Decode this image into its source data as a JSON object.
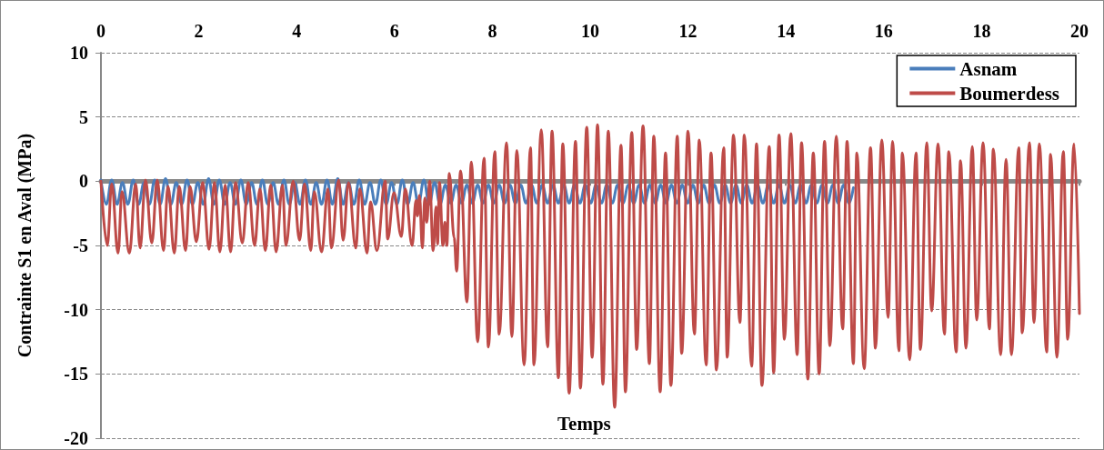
{
  "chart_data": {
    "type": "line",
    "xlabel": "Temps",
    "ylabel": "Contrainte S1 en Aval (MPa)",
    "xlim": [
      0,
      20
    ],
    "xticks": [
      0,
      2,
      4,
      6,
      8,
      10,
      12,
      14,
      16,
      18,
      20
    ],
    "ylim": [
      -20,
      10
    ],
    "yticks": [
      -20,
      -15,
      -10,
      -5,
      0,
      5,
      10
    ],
    "grid": "y",
    "legend": "top right",
    "marker": "none",
    "line_style": "solid",
    "series": [
      {
        "name": "Asnam",
        "color": "#4a7ebb",
        "x": [
          0,
          0.11,
          0.22,
          0.33,
          0.44,
          0.55,
          0.66,
          0.77,
          0.88,
          0.99,
          1.1,
          1.21,
          1.32,
          1.43,
          1.54,
          1.65,
          1.76,
          1.87,
          1.98,
          2.09,
          2.2,
          2.31,
          2.42,
          2.53,
          2.64,
          2.75,
          2.86,
          2.97,
          3.08,
          3.19,
          3.3,
          3.41,
          3.52,
          3.63,
          3.74,
          3.85,
          3.96,
          4.07,
          4.18,
          4.29,
          4.4,
          4.51,
          4.62,
          4.73,
          4.84,
          4.95,
          5.06,
          5.17,
          5.28,
          5.39,
          5.5,
          5.61,
          5.72,
          5.83,
          5.94,
          6.05,
          6.16,
          6.27,
          6.38,
          6.49,
          6.6,
          6.71,
          6.82,
          6.93,
          7.04,
          7.15,
          7.26,
          7.37,
          7.48,
          7.59,
          7.7,
          7.81,
          7.92,
          8.03,
          8.14,
          8.25,
          8.36,
          8.47,
          8.58,
          8.69,
          8.8,
          8.91,
          9.02,
          9.13,
          9.24,
          9.35,
          9.46,
          9.57,
          9.68,
          9.79,
          9.9,
          10.01,
          10.12,
          10.23,
          10.34,
          10.45,
          10.56,
          10.67,
          10.78,
          10.89,
          11,
          11.11,
          11.22,
          11.33,
          11.44,
          11.55,
          11.66,
          11.77,
          11.88,
          11.99,
          12.1,
          12.21,
          12.32,
          12.43,
          12.54,
          12.65,
          12.76,
          12.87,
          12.98,
          13.09,
          13.2,
          13.31,
          13.42,
          13.53,
          13.64,
          13.75,
          13.86,
          13.97,
          14.08,
          14.19,
          14.3,
          14.41,
          14.52,
          14.63,
          14.74,
          14.85,
          14.96,
          15.07,
          15.18,
          15.29,
          15.38
        ],
        "values": [
          0.1,
          -1.8,
          0.1,
          -1.8,
          -0.1,
          -1.8,
          0.1,
          -1.8,
          -0.1,
          -1.8,
          0.1,
          -1.8,
          0.2,
          -1.8,
          -0.1,
          -1.8,
          0.1,
          -1.8,
          -0.1,
          -1.8,
          0.2,
          -1.8,
          0.1,
          -1.8,
          -0.1,
          -1.8,
          0.1,
          -1.8,
          -0.1,
          -1.8,
          0.1,
          -1.8,
          -0.1,
          -1.8,
          0.1,
          -1.8,
          -0.1,
          -1.8,
          0.1,
          -1.8,
          -0.1,
          -1.8,
          0.1,
          -1.8,
          0.2,
          -1.8,
          -0.1,
          -1.8,
          0.1,
          -1.8,
          -0.1,
          -1.8,
          0.1,
          -1.8,
          -0.1,
          -1.8,
          0.1,
          -1.8,
          -0.1,
          -1.8,
          0.1,
          -1.8,
          -0.1,
          -1.8,
          -0.3,
          -1.7,
          -0.3,
          -1.7,
          -0.3,
          -1.7,
          -0.3,
          -1.7,
          -0.3,
          -1.7,
          -0.3,
          -1.7,
          -0.3,
          -1.7,
          -0.3,
          -1.7,
          -0.3,
          -1.7,
          -0.3,
          -1.7,
          -0.3,
          -1.7,
          -0.3,
          -1.7,
          -0.3,
          -1.7,
          -0.3,
          -1.7,
          -0.3,
          -1.7,
          -0.3,
          -1.7,
          -0.3,
          -1.7,
          -0.3,
          -1.7,
          -0.3,
          -1.7,
          -0.3,
          -1.7,
          -0.3,
          -1.7,
          -0.3,
          -1.7,
          -0.3,
          -1.7,
          -0.3,
          -1.7,
          -0.3,
          -1.7,
          -0.3,
          -1.7,
          -0.3,
          -1.7,
          -0.3,
          -1.7,
          -0.3,
          -1.7,
          -0.3,
          -1.7,
          -0.3,
          -1.7,
          -0.3,
          -1.7,
          -0.3,
          -1.7,
          -0.3,
          -1.7,
          -0.3,
          -1.7,
          -0.3,
          -1.7,
          -0.3,
          -1.7,
          -0.3,
          -1.7,
          -0.5
        ]
      },
      {
        "name": "Boumerdess",
        "color": "#be4b48",
        "x": [
          0,
          0.13,
          0.22,
          0.35,
          0.43,
          0.58,
          0.71,
          0.8,
          0.91,
          1.04,
          1.15,
          1.28,
          1.37,
          1.5,
          1.6,
          1.73,
          1.82,
          1.95,
          2.08,
          2.21,
          2.32,
          2.43,
          2.54,
          2.65,
          2.75,
          2.89,
          3.01,
          3.14,
          3.25,
          3.36,
          3.47,
          3.58,
          3.71,
          3.78,
          3.93,
          4.06,
          4.16,
          4.29,
          4.36,
          4.51,
          4.64,
          4.71,
          4.86,
          4.95,
          5.06,
          5.21,
          5.29,
          5.44,
          5.51,
          5.64,
          5.81,
          5.86,
          5.99,
          6.14,
          6.22,
          6.36,
          6.44,
          6.47,
          6.51,
          6.57,
          6.62,
          6.66,
          6.72,
          6.79,
          6.85,
          6.88,
          6.92,
          6.99,
          7.03,
          7.07,
          7.12,
          7.22,
          7.27,
          7.35,
          7.48,
          7.57,
          7.7,
          7.83,
          7.92,
          8.05,
          8.14,
          8.29,
          8.4,
          8.5,
          8.65,
          8.78,
          8.85,
          9.0,
          9.13,
          9.22,
          9.35,
          9.44,
          9.57,
          9.7,
          9.8,
          9.93,
          10.04,
          10.15,
          10.26,
          10.37,
          10.5,
          10.63,
          10.72,
          10.85,
          10.95,
          11.08,
          11.21,
          11.3,
          11.43,
          11.54,
          11.65,
          11.78,
          11.87,
          12.0,
          12.13,
          12.23,
          12.37,
          12.47,
          12.58,
          12.73,
          12.8,
          12.93,
          13.06,
          13.15,
          13.3,
          13.4,
          13.51,
          13.66,
          13.75,
          13.86,
          13.97,
          14.1,
          14.23,
          14.32,
          14.45,
          14.56,
          14.68,
          14.79,
          14.9,
          15.03,
          15.16,
          15.25,
          15.38,
          15.45,
          15.6,
          15.73,
          15.83,
          15.96,
          16.09,
          16.18,
          16.31,
          16.38,
          16.53,
          16.66,
          16.75,
          16.88,
          16.98,
          17.11,
          17.24,
          17.33,
          17.48,
          17.57,
          17.68,
          17.81,
          17.9,
          18.03,
          18.16,
          18.24,
          18.39,
          18.5,
          18.61,
          18.76,
          18.83,
          18.98,
          19.07,
          19.18,
          19.33,
          19.41,
          19.54,
          19.67,
          19.76,
          19.89,
          20.0
        ],
        "values": [
          0,
          -5.0,
          -0.2,
          -5.6,
          -0.8,
          -5.6,
          -0.2,
          -5.2,
          0.1,
          -4.8,
          0.1,
          -5.4,
          -0.4,
          -5.6,
          -0.4,
          -5.4,
          -0.4,
          -4.7,
          -0.1,
          -5.3,
          -0.1,
          -5.5,
          -0.3,
          -5.5,
          -0.1,
          -4.8,
          -0.1,
          -5.0,
          -0.6,
          -5.4,
          -0.3,
          -5.5,
          -0.3,
          -5.0,
          0,
          -4.6,
          -0.2,
          -5.4,
          -0.8,
          -5.5,
          -0.6,
          -5.2,
          0.1,
          -4.6,
          -0.1,
          -5.2,
          -0.6,
          -5.6,
          -1.6,
          -5.4,
          0,
          -4.5,
          -0.9,
          -4.3,
          -0.6,
          -5.0,
          -1.5,
          -2.7,
          -1.1,
          -5.2,
          -1.3,
          -3.2,
          0,
          -5.4,
          -2.0,
          -4.9,
          -0.1,
          -5.0,
          -3.2,
          -5.0,
          0.6,
          -4.4,
          -7.0,
          0.8,
          -9.4,
          1.5,
          -12.5,
          1.8,
          -12.9,
          2.3,
          -11.9,
          3.0,
          -12.1,
          2.4,
          -14.3,
          2.6,
          -14.3,
          4.0,
          -12.9,
          3.9,
          -15.3,
          2.9,
          -16.5,
          3.1,
          -16.1,
          4.2,
          -13.7,
          4.4,
          -15.8,
          3.9,
          -17.6,
          2.8,
          -16.4,
          3.8,
          -13.1,
          4.3,
          -14.2,
          3.5,
          -16.4,
          2.2,
          -15.9,
          3.5,
          -13.4,
          3.9,
          -11.9,
          3.2,
          -14.3,
          2.2,
          -14.7,
          2.6,
          -13.7,
          3.6,
          -11.0,
          3.6,
          -14.4,
          2.9,
          -15.9,
          2.7,
          -14.9,
          3.6,
          -12.3,
          3.7,
          -13.5,
          3.0,
          -15.4,
          2.2,
          -15.0,
          3.1,
          -12.8,
          3.5,
          -11.5,
          3.1,
          -14.2,
          2.2,
          -14.6,
          2.6,
          -13.0,
          3.2,
          -10.6,
          3.1,
          -13.2,
          2.2,
          -13.9,
          2.2,
          -13.1,
          3.0,
          -10.1,
          2.9,
          -11.9,
          2.3,
          -13.3,
          1.6,
          -13.0,
          2.7,
          -10.8,
          3.0,
          -11.5,
          2.5,
          -13.5,
          1.7,
          -13.5,
          2.6,
          -11.8,
          3.0,
          -11.0,
          2.9,
          -13.3,
          2.1,
          -13.7,
          2.3,
          -12.3,
          2.9,
          -10.3
        ]
      }
    ]
  }
}
